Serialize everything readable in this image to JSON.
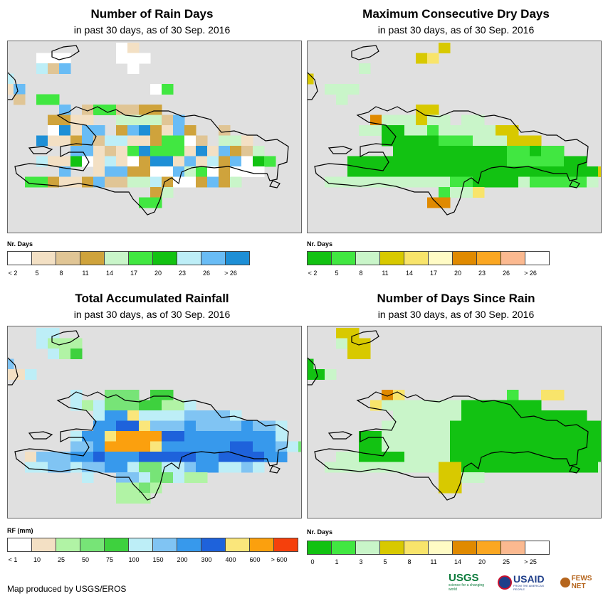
{
  "panels": [
    {
      "id": "rain-days",
      "title": "Number of Rain Days",
      "subtitle": "in past 30 days, as of 30 Sep. 2016",
      "legend_title": "Nr. Days",
      "legend_colors": [
        "#ffffff",
        "#f3e0c4",
        "#e0c595",
        "#cfa33c",
        "#c9f5c9",
        "#41e741",
        "#12c212",
        "#bdeef7",
        "#69bcf5",
        "#1e8fd6"
      ],
      "legend_labels": [
        "< 2",
        "5",
        "8",
        "11",
        "14",
        "17",
        "20",
        "23",
        "26",
        "> 26"
      ],
      "grid": [
        "..........KL................",
        "...AAA....AKK...............",
        "...HMS.....K................",
        "R...........................",
        "BI...........KZ.............",
        ".C.ZZ.......................",
        ".....S.CZZMMDD..............",
        "....DDBB..EOEOMS............",
        "....ATVSS.DSTNLSD..M.......",
        "...TBLXSMRRLLNPPKM.EEL.....",
        "......SSBMLFTPPPLTBSNMY.....",
        "...RLLQKLHLUNTTBSLRNIKGF....",
        ".....I..BIIDDAAIEFADUAA.....",
        "..FFDLBDSCCEEHNAANSXY......",
        ".............XE.............",
        "............FF.............."
      ]
    },
    {
      "id": "max-dry-days",
      "title": "Maximum Consecutive Dry Days",
      "subtitle": "in past 30 days, as of 30 Sep. 2016",
      "legend_title": "Nr. Days",
      "legend_colors": [
        "#12c212",
        "#41e741",
        "#c9f5c9",
        "#d8c900",
        "#f8e46b",
        "#fffbc5",
        "#e08a00",
        "#fba722",
        "#fbb990",
        "#ffffff"
      ],
      "legend_labels": [
        "< 2",
        "5",
        "8",
        "11",
        "14",
        "17",
        "20",
        "23",
        "26",
        "> 26"
      ],
      "grid": [
        "............D...............",
        "..........DE................",
        ".....C.......................",
        "D............................",
        "..CCC........................",
        "...C...........................",
        "..........DD..................",
        "......GCCCDCC.CC............",
        ".....CCAACCBCCCCCDD.........",
        ".......AAAAABBBCCCDDD.......",
        "........AAAAAAAAAABBABB.....",
        "....AAAAAAAAAAAAAABBBBBAA...",
        "....AAAAAAAAAAAAAAAAAAAAAAD.",
        "..CCCCCCCCCCCBBAAAACBBBBBC..",
        "............BCCE............",
        "...........GG..............."
      ]
    },
    {
      "id": "total-rainfall",
      "title": "Total Accumulated Rainfall",
      "subtitle": "in past 30 days, as of 30 Sep. 2016",
      "legend_title": "RF (mm)",
      "legend_colors": [
        "#ffffff",
        "#f3e0c4",
        "#b1f3a5",
        "#77e477",
        "#3ed13e",
        "#bdeef7",
        "#80c4f3",
        "#3799ec",
        "#1e62db",
        "#fae67b",
        "#fba00e",
        "#f5400c"
      ],
      "legend_labels": [
        "< 1",
        "10",
        "25",
        "50",
        "75",
        "100",
        "150",
        "200",
        "300",
        "400",
        "600",
        "> 600"
      ],
      "grid": [
        "...FF......................",
        "...FCCC....................",
        "....FCE....................",
        "G...........................",
        "BBF.........................",
        "............................",
        "......F..DDD.EE.............",
        "......FCFDDDEECCF............",
        "........FHHJFFFFGGGGF......",
        "........HHIIJGGGHGGGGHGGF...",
        "......FHHJKKKKIIHHHHHHHHF...",
        "......GGHKKKKJHHHHHHIIHHGFD.",
        "..BGGGHHIHHHIIIIIHHIIIIHH...",
        "..FFGGFGGHHFDDFFGHHFFGF.....",
        ".......F..GGFDDFCC..........",
        "..........CCDC..............",
        "..........CCC..............."
      ]
    },
    {
      "id": "days-since-rain",
      "title": "Number of Days Since Rain",
      "subtitle": "in past 30 days, as of 30 Sep. 2016",
      "legend_title": "Nr. Days",
      "legend_colors": [
        "#12c212",
        "#41e741",
        "#c9f5c9",
        "#d8c900",
        "#f8e46b",
        "#fffbc5",
        "#e08a00",
        "#fba722",
        "#fbb990",
        "#ffffff"
      ],
      "legend_labels": [
        "0",
        "1",
        "3",
        "5",
        "8",
        "11",
        "14",
        "20",
        "25",
        "> 25"
      ],
      "grid": [
        "...DD.......................",
        "...CDD......................",
        "....DD......................",
        "A..........................",
        "AAC........................",
        "...............................",
        ".......GE.........B..EE.......",
        "......ECCCCCCCAAAAAAA.......",
        "........CCCCCCAAAAAAAAAAA.....",
        ".......CCCCCCAAAAAAAAAAAAAAA...",
        ".....AACCCCCCAAAAAAAAAAAAAA.....",
        ".....AACCCCCCAAAAAAAAAAAAAACE...",
        "...CCAAAACCCCAAAAAAAAAAAAAAEA..",
        "..CCCCCCCCCCDDAAAAAAAAAAAAC....",
        "............DDCC.............",
        "............DD..............."
      ]
    }
  ],
  "credit": "Map produced by USGS/EROS",
  "logos": {
    "usgs": "USGS",
    "usgs_tag": "science for a changing world",
    "usaid": "USAID",
    "usaid_tag": "FROM THE AMERICAN PEOPLE",
    "fewsnet": "FEWS NET"
  }
}
